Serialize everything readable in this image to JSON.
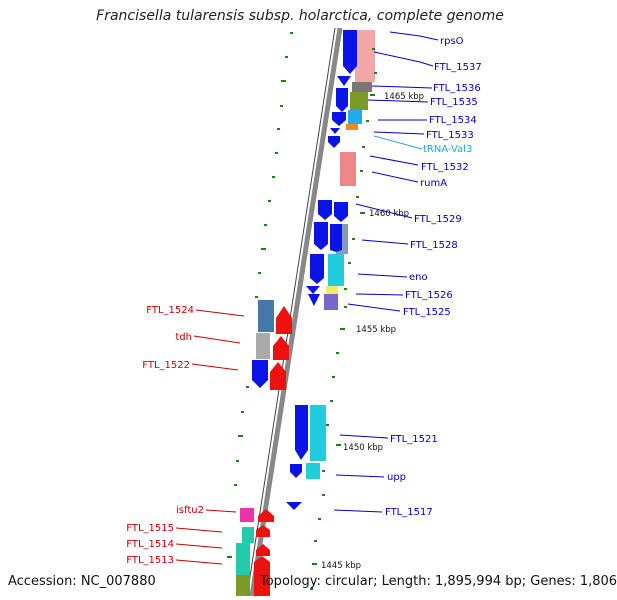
{
  "title": "Francisella tularensis subsp. holarctica, complete genome",
  "footer": {
    "accession": "Accession: NC_007880",
    "topology": "Topology: circular; Length: 1,895,994 bp; Genes: 1,806"
  },
  "colors": {
    "forward_label": "#0000cc",
    "reverse_label": "#cc0000",
    "trna_label": "#22aacc",
    "backbone": "#888888",
    "tick": "#118811",
    "forward_cds": "#0a14e6",
    "reverse_cds": "#ee1111"
  },
  "scale_labels": [
    "1465 kbp",
    "1460 kbp",
    "1455 kbp",
    "1450 kbp",
    "1445 kbp"
  ],
  "forward_genes": [
    "rpsO",
    "FTL_1537",
    "FTL_1536",
    "FTL_1535",
    "FTL_1534",
    "FTL_1533",
    "tRNA-Val3",
    "FTL_1532",
    "rumA",
    "FTL_1529",
    "FTL_1528",
    "eno",
    "FTL_1526",
    "FTL_1525",
    "FTL_1521",
    "upp",
    "FTL_1517"
  ],
  "reverse_genes": [
    "FTL_1524",
    "tdh",
    "FTL_1522",
    "isftu2",
    "FTL_1515",
    "FTL_1514",
    "FTL_1513"
  ]
}
